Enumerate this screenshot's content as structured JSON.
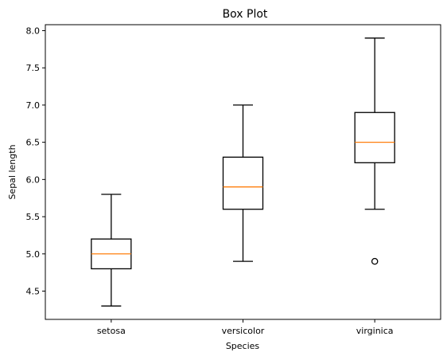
{
  "chart_data": {
    "type": "box",
    "title": "Box Plot",
    "xlabel": "Species",
    "ylabel": "Sepal length",
    "categories": [
      "setosa",
      "versicolor",
      "virginica"
    ],
    "yticks": [
      "4.5",
      "5.0",
      "5.5",
      "6.0",
      "6.5",
      "7.0",
      "7.5",
      "8.0"
    ],
    "ylim": [
      4.12,
      8.08
    ],
    "grid": false,
    "colors": {
      "box": "#000000",
      "median": "#ff7f0e",
      "axes": "#000000"
    },
    "boxes": [
      {
        "category": "setosa",
        "whisker_low": 4.3,
        "q1": 4.8,
        "median": 5.0,
        "q3": 5.2,
        "whisker_high": 5.8,
        "outliers": []
      },
      {
        "category": "versicolor",
        "whisker_low": 4.9,
        "q1": 5.6,
        "median": 5.9,
        "q3": 6.3,
        "whisker_high": 7.0,
        "outliers": []
      },
      {
        "category": "virginica",
        "whisker_low": 5.6,
        "q1": 6.225,
        "median": 6.5,
        "q3": 6.9,
        "whisker_high": 7.9,
        "outliers": [
          4.9
        ]
      }
    ]
  }
}
